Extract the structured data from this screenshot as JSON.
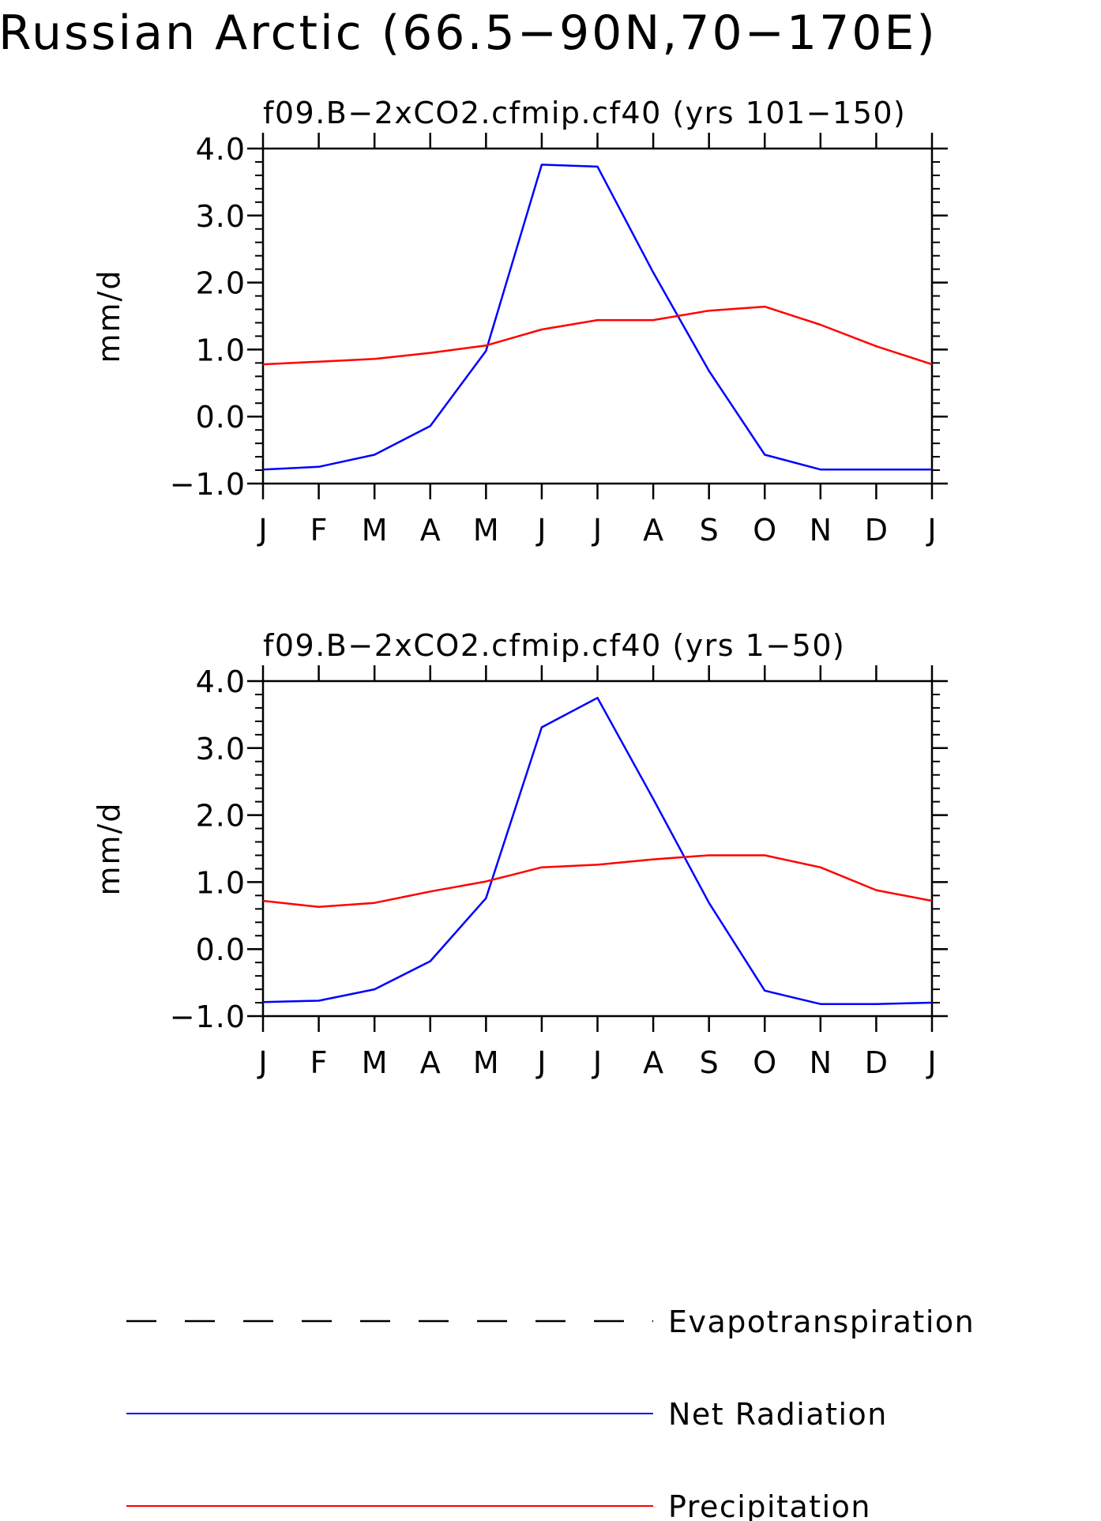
{
  "figure_title": "Russian Arctic (66.5−90N,70−170E)",
  "colors": {
    "net_radiation": "#0000ff",
    "precipitation": "#ff0000",
    "evapotranspiration": "#000000"
  },
  "legend": [
    {
      "label": "Evapotranspiration",
      "style": "dashed"
    },
    {
      "label": "Net Radiation",
      "style": "solid"
    },
    {
      "label": "Precipitation",
      "style": "solid"
    }
  ],
  "chart_data": [
    {
      "type": "line",
      "title": "f09.B−2xCO2.cfmip.cf40 (yrs 101−150)",
      "ylabel": "mm/d",
      "ylim": [
        -1.0,
        4.0
      ],
      "yticks": [
        "−1.0",
        "0.0",
        "1.0",
        "2.0",
        "3.0",
        "4.0"
      ],
      "categories": [
        "J",
        "F",
        "M",
        "A",
        "M",
        "J",
        "J",
        "A",
        "S",
        "O",
        "N",
        "D",
        "J"
      ],
      "series": [
        {
          "name": "Net Radiation",
          "values": [
            -0.79,
            -0.75,
            -0.57,
            -0.14,
            0.98,
            3.76,
            3.73,
            2.15,
            0.68,
            -0.57,
            -0.79,
            -0.79,
            -0.79
          ]
        },
        {
          "name": "Precipitation",
          "values": [
            0.78,
            0.82,
            0.86,
            0.95,
            1.06,
            1.3,
            1.44,
            1.44,
            1.58,
            1.64,
            1.37,
            1.05,
            0.78
          ]
        }
      ]
    },
    {
      "type": "line",
      "title": "f09.B−2xCO2.cfmip.cf40 (yrs 1−50)",
      "ylabel": "mm/d",
      "ylim": [
        -1.0,
        4.0
      ],
      "yticks": [
        "−1.0",
        "0.0",
        "1.0",
        "2.0",
        "3.0",
        "4.0"
      ],
      "categories": [
        "J",
        "F",
        "M",
        "A",
        "M",
        "J",
        "J",
        "A",
        "S",
        "O",
        "N",
        "D",
        "J"
      ],
      "series": [
        {
          "name": "Net Radiation",
          "values": [
            -0.79,
            -0.77,
            -0.6,
            -0.18,
            0.76,
            3.31,
            3.75,
            2.24,
            0.69,
            -0.62,
            -0.82,
            -0.82,
            -0.8
          ]
        },
        {
          "name": "Precipitation",
          "values": [
            0.72,
            0.63,
            0.69,
            0.86,
            1.01,
            1.22,
            1.26,
            1.34,
            1.4,
            1.4,
            1.22,
            0.88,
            0.72
          ]
        }
      ]
    }
  ]
}
